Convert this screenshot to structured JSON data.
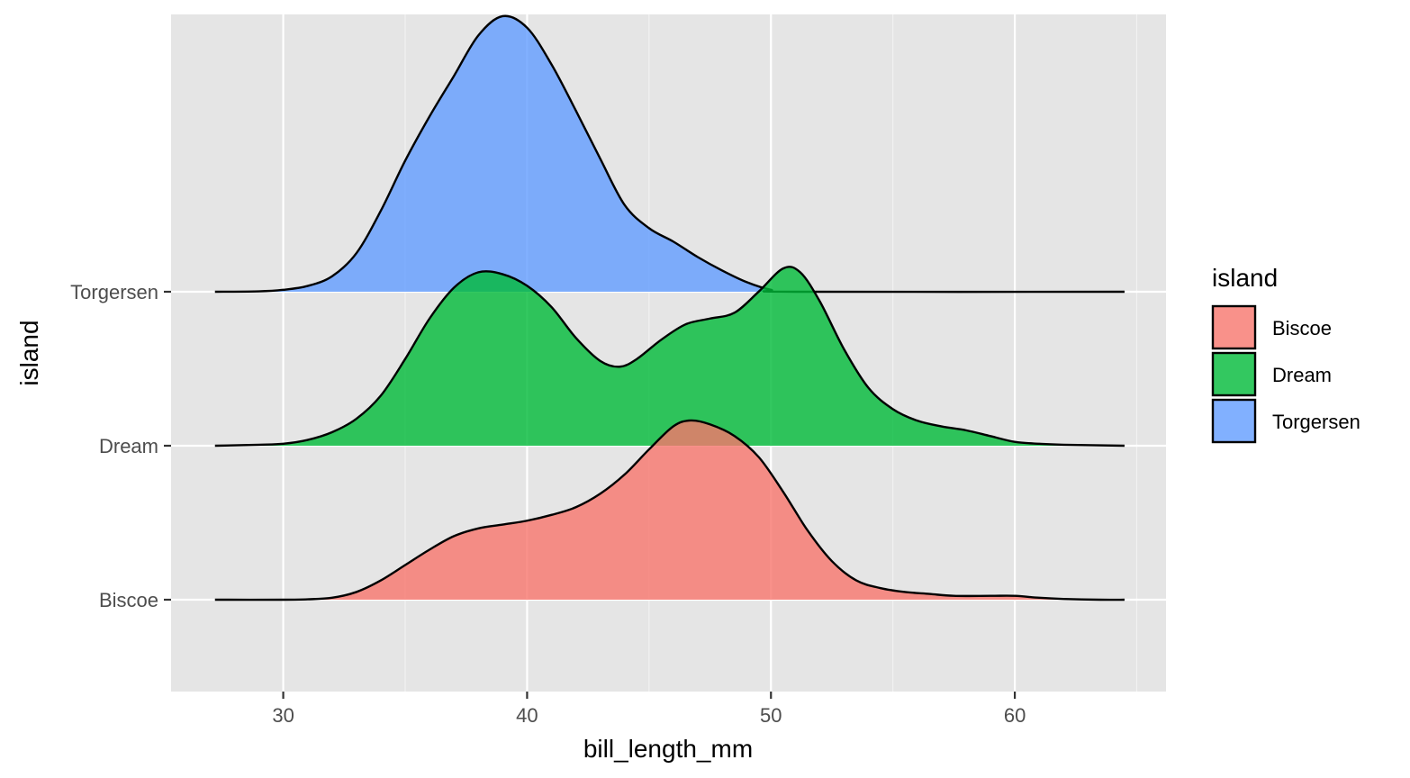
{
  "chart_data": {
    "type": "area",
    "subtype": "ridgeline-density",
    "xlabel": "bill_length_mm",
    "ylabel": "island",
    "xlim": [
      25.4,
      66.2
    ],
    "x_ticks": [
      30,
      40,
      50,
      60
    ],
    "y_categories": [
      "Biscoe",
      "Dream",
      "Torgersen"
    ],
    "grid": true,
    "legend": {
      "title": "island",
      "placement": "right"
    },
    "series": [
      {
        "name": "Biscoe",
        "color": "#F8766D",
        "points": [
          [
            27.2,
            0.0
          ],
          [
            30,
            0.0
          ],
          [
            31,
            0.002
          ],
          [
            32,
            0.01
          ],
          [
            33,
            0.04
          ],
          [
            34,
            0.1
          ],
          [
            35,
            0.18
          ],
          [
            36,
            0.26
          ],
          [
            37,
            0.33
          ],
          [
            38,
            0.37
          ],
          [
            39,
            0.39
          ],
          [
            40,
            0.41
          ],
          [
            41,
            0.44
          ],
          [
            42,
            0.48
          ],
          [
            43,
            0.55
          ],
          [
            44,
            0.65
          ],
          [
            45,
            0.78
          ],
          [
            46,
            0.9
          ],
          [
            46.7,
            0.93
          ],
          [
            47.5,
            0.91
          ],
          [
            48.5,
            0.85
          ],
          [
            49.5,
            0.74
          ],
          [
            50.5,
            0.56
          ],
          [
            51.5,
            0.36
          ],
          [
            52.5,
            0.2
          ],
          [
            53.5,
            0.1
          ],
          [
            54.5,
            0.06
          ],
          [
            55.5,
            0.04
          ],
          [
            56.5,
            0.03
          ],
          [
            57.5,
            0.02
          ],
          [
            59,
            0.02
          ],
          [
            60,
            0.02
          ],
          [
            61,
            0.01
          ],
          [
            62,
            0.004
          ],
          [
            63.5,
            0.0
          ],
          [
            64.5,
            0.0
          ]
        ]
      },
      {
        "name": "Dream",
        "color": "#00BA38",
        "points": [
          [
            27.2,
            0.0
          ],
          [
            29,
            0.005
          ],
          [
            30,
            0.01
          ],
          [
            31,
            0.03
          ],
          [
            32,
            0.07
          ],
          [
            33,
            0.14
          ],
          [
            34,
            0.26
          ],
          [
            35,
            0.45
          ],
          [
            36,
            0.66
          ],
          [
            37,
            0.82
          ],
          [
            38,
            0.9
          ],
          [
            39,
            0.89
          ],
          [
            40,
            0.83
          ],
          [
            41,
            0.72
          ],
          [
            42,
            0.56
          ],
          [
            43,
            0.44
          ],
          [
            43.8,
            0.41
          ],
          [
            44.5,
            0.45
          ],
          [
            45.5,
            0.55
          ],
          [
            46.5,
            0.63
          ],
          [
            47.5,
            0.66
          ],
          [
            48.5,
            0.69
          ],
          [
            49.5,
            0.8
          ],
          [
            50.5,
            0.92
          ],
          [
            51.2,
            0.9
          ],
          [
            52,
            0.75
          ],
          [
            53,
            0.5
          ],
          [
            54,
            0.3
          ],
          [
            55,
            0.19
          ],
          [
            56,
            0.13
          ],
          [
            57,
            0.1
          ],
          [
            58,
            0.08
          ],
          [
            59,
            0.05
          ],
          [
            60,
            0.02
          ],
          [
            61,
            0.01
          ],
          [
            62,
            0.005
          ],
          [
            64.5,
            0.0
          ]
        ]
      },
      {
        "name": "Torgersen",
        "color": "#619CFF",
        "points": [
          [
            27.2,
            0.0
          ],
          [
            29,
            0.002
          ],
          [
            30,
            0.01
          ],
          [
            31,
            0.03
          ],
          [
            32,
            0.08
          ],
          [
            33,
            0.2
          ],
          [
            34,
            0.42
          ],
          [
            35,
            0.68
          ],
          [
            36,
            0.91
          ],
          [
            37,
            1.12
          ],
          [
            38,
            1.33
          ],
          [
            39,
            1.43
          ],
          [
            40,
            1.37
          ],
          [
            41,
            1.18
          ],
          [
            42,
            0.94
          ],
          [
            43,
            0.69
          ],
          [
            44,
            0.45
          ],
          [
            45,
            0.33
          ],
          [
            46,
            0.26
          ],
          [
            47,
            0.18
          ],
          [
            48,
            0.11
          ],
          [
            49,
            0.05
          ],
          [
            50,
            0.01
          ],
          [
            51,
            0.0
          ],
          [
            64.5,
            0.0
          ]
        ]
      }
    ]
  }
}
